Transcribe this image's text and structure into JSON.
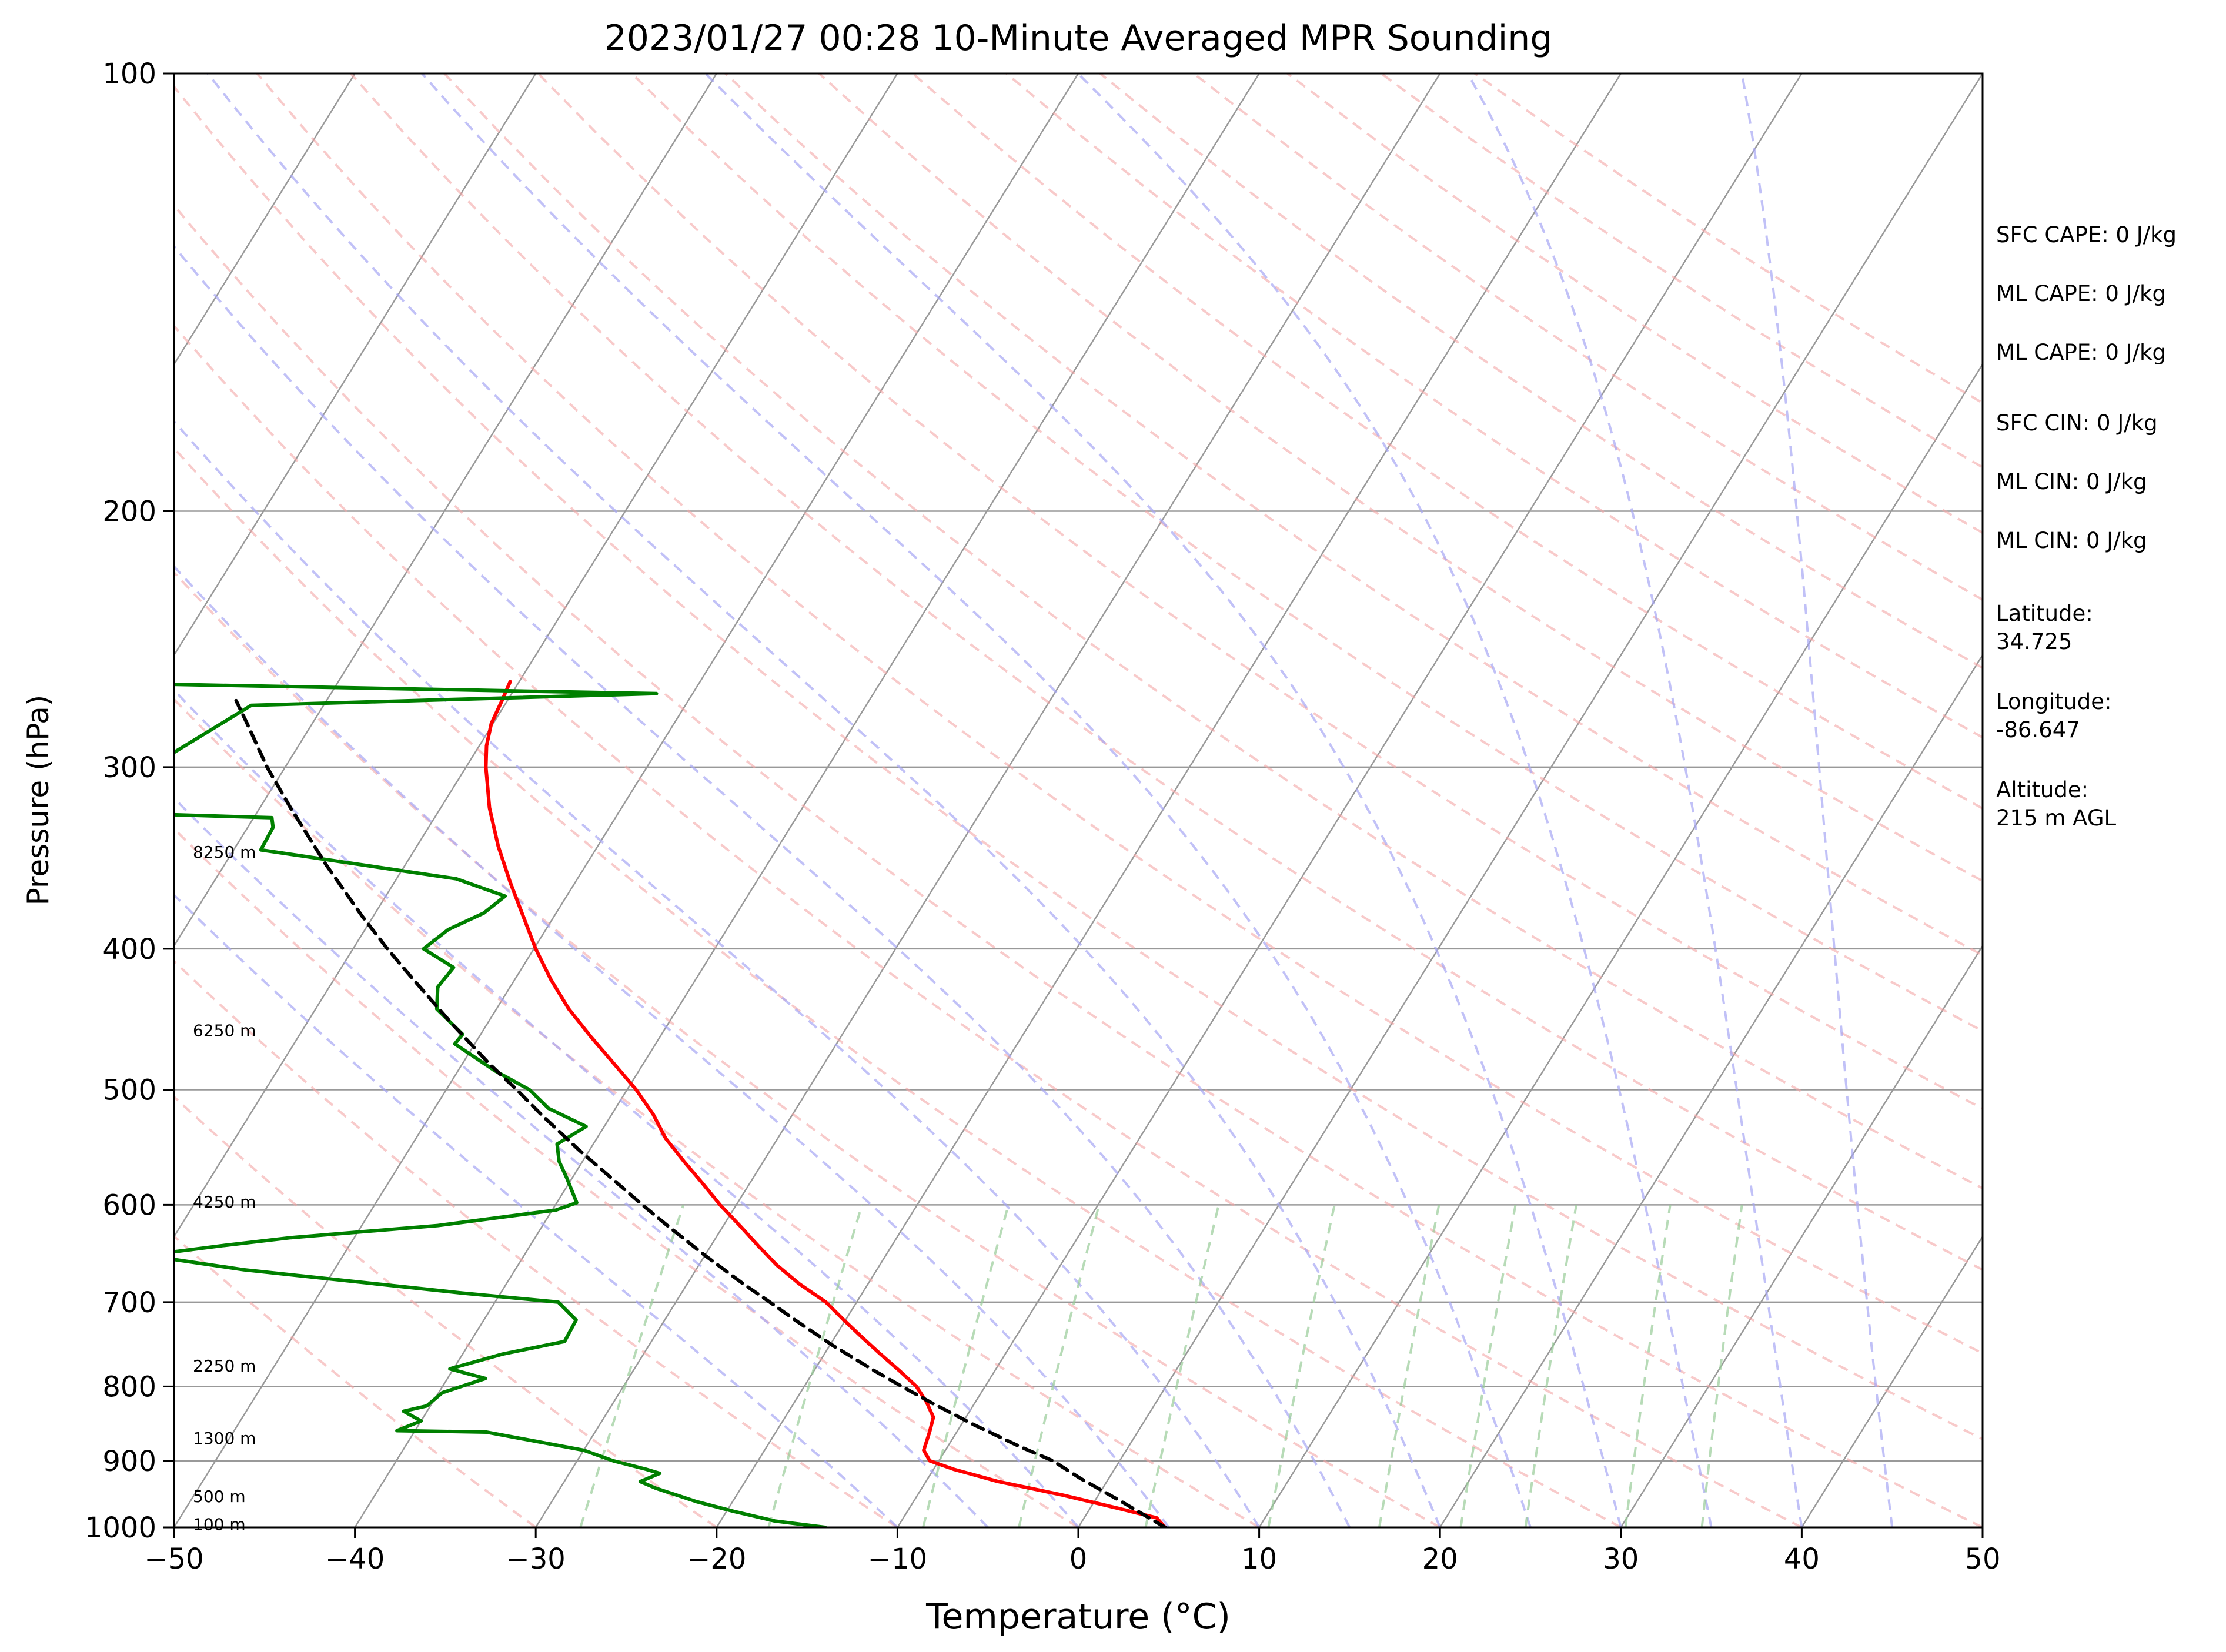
{
  "chart_data": {
    "type": "line",
    "title": "2023/01/27 00:28 10-Minute Averaged MPR Sounding",
    "xlabel": "Temperature (°C)",
    "ylabel": "Pressure (hPa)",
    "xlim": [
      -50,
      50
    ],
    "ylim": [
      1000,
      100
    ],
    "yscale": "log",
    "skew": "skew-T log-P",
    "x_ticks": [
      "−50",
      "−40",
      "−30",
      "−20",
      "−10",
      "0",
      "10",
      "20",
      "30",
      "40",
      "50"
    ],
    "x_tick_values": [
      -50,
      -40,
      -30,
      -20,
      -10,
      0,
      10,
      20,
      30,
      40,
      50
    ],
    "y_ticks": [
      "100",
      "200",
      "300",
      "400",
      "500",
      "600",
      "700",
      "800",
      "900",
      "1000"
    ],
    "y_tick_values": [
      100,
      200,
      300,
      400,
      500,
      600,
      700,
      800,
      900,
      1000
    ],
    "grid": true,
    "colors": {
      "temperature": "#ff0000",
      "dewpoint": "#008000",
      "parcel": "#000000",
      "dry_adiabats": "#f4a6a6",
      "moist_adiabats": "#a6a6f4",
      "mixing_ratio": "#99cc99",
      "isotherms": "#999999"
    },
    "series": [
      {
        "key": "temperature",
        "pressure": [
          1000,
          985,
          970,
          950,
          930,
          912,
          900,
          885,
          860,
          840,
          820,
          800,
          780,
          760,
          740,
          720,
          700,
          680,
          660,
          640,
          620,
          600,
          580,
          560,
          540,
          520,
          500,
          480,
          460,
          440,
          420,
          400,
          380,
          360,
          340,
          320,
          300,
          290,
          280,
          270,
          262
        ],
        "values": [
          4.8,
          4.0,
          1.5,
          -2.0,
          -6.0,
          -8.9,
          -10.5,
          -11.2,
          -11.5,
          -11.8,
          -12.7,
          -13.8,
          -15.3,
          -16.9,
          -18.5,
          -20.1,
          -21.7,
          -23.8,
          -25.7,
          -27.4,
          -29.1,
          -30.9,
          -32.6,
          -34.4,
          -36.2,
          -37.7,
          -39.5,
          -41.6,
          -43.8,
          -46.0,
          -48.0,
          -49.9,
          -51.7,
          -53.6,
          -55.5,
          -57.3,
          -58.9,
          -59.6,
          -60.1,
          -60.3,
          -60.5
        ]
      },
      {
        "key": "dewpoint",
        "pressure": [
          1000,
          990,
          975,
          960,
          940,
          930,
          918,
          912,
          900,
          885,
          860,
          858,
          845,
          832,
          825,
          808,
          790,
          778,
          760,
          745,
          720,
          700,
          690,
          665,
          650,
          640,
          632,
          620,
          605,
          598,
          575,
          560,
          545,
          530,
          515,
          500,
          485,
          465,
          458,
          440,
          425,
          412,
          400,
          388,
          378,
          368,
          358,
          342,
          330,
          325,
          322,
          272,
          267,
          263
        ],
        "values": [
          -14.0,
          -17.0,
          -19.6,
          -22.0,
          -24.7,
          -25.8,
          -25.0,
          -25.9,
          -28.0,
          -30.0,
          -36.0,
          -41.0,
          -40.0,
          -41.3,
          -40.2,
          -39.8,
          -37.9,
          -40.2,
          -37.8,
          -34.8,
          -34.9,
          -36.5,
          -42.1,
          -55.0,
          -60.9,
          -57.0,
          -53.5,
          -45.8,
          -39.8,
          -38.9,
          -40.3,
          -41.3,
          -42.0,
          -41.0,
          -43.7,
          -45.4,
          -48.0,
          -51.1,
          -51.0,
          -53.3,
          -54.0,
          -53.8,
          -56.1,
          -55.4,
          -54.0,
          -53.4,
          -56.7,
          -68.5,
          -68.6,
          -69.0,
          -80.0,
          -74.0,
          -52.0,
          -80.0
        ]
      },
      {
        "key": "parcel",
        "pressure": [
          1000,
          960,
          925,
          900,
          880,
          850,
          820,
          800,
          780,
          750,
          720,
          700,
          680,
          650,
          620,
          600,
          580,
          550,
          520,
          500,
          480,
          450,
          420,
          400,
          380,
          350,
          320,
          300,
          280,
          270
        ],
        "values": [
          4.8,
          1.5,
          -1.6,
          -3.7,
          -6.0,
          -9.3,
          -12.5,
          -14.6,
          -16.7,
          -19.8,
          -22.8,
          -24.8,
          -26.9,
          -30.0,
          -33.1,
          -35.2,
          -37.3,
          -40.6,
          -43.9,
          -46.1,
          -48.5,
          -52.0,
          -55.6,
          -58.1,
          -60.6,
          -64.4,
          -68.3,
          -71.0,
          -73.6,
          -75.0
        ]
      }
    ],
    "height_labels": [
      {
        "label": "8250 m",
        "pressure": 343
      },
      {
        "label": "6250 m",
        "pressure": 455
      },
      {
        "label": "4250 m",
        "pressure": 597
      },
      {
        "label": "2250 m",
        "pressure": 774
      },
      {
        "label": "1300 m",
        "pressure": 868
      },
      {
        "label": "500 m",
        "pressure": 952
      },
      {
        "label": "100 m",
        "pressure": 995
      }
    ]
  },
  "info_panel": {
    "sfc_cape": "SFC CAPE: 0 J/kg",
    "ml_cape_1": "ML CAPE: 0 J/kg",
    "ml_cape_2": "ML CAPE: 0 J/kg",
    "sfc_cin": "SFC CIN: 0 J/kg",
    "ml_cin_1": "ML CIN: 0 J/kg",
    "ml_cin_2": "ML CIN: 0 J/kg",
    "latitude_label": "Latitude:",
    "latitude_value": "34.725",
    "longitude_label": "Longitude:",
    "longitude_value": "-86.647",
    "altitude_label": "Altitude:",
    "altitude_value": "215 m AGL"
  }
}
